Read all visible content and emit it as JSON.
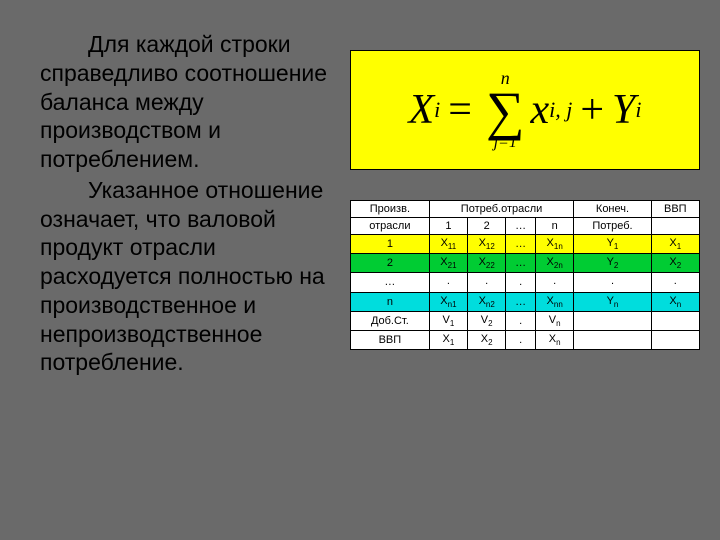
{
  "text": {
    "para1": "Для каждой строки справедливо соотношение баланса между производством и потреблением.",
    "para2": "Указанное отношение означает, что валовой продукт отрасли расходуется полностью на производственное и непроизводственное потребление."
  },
  "formula": {
    "lhs_var": "X",
    "lhs_sub": "i",
    "eq": "=",
    "sum_top": "n",
    "sum_sym": "∑",
    "sum_bot": "j=1",
    "term1_var": "x",
    "term1_sub": "i, j",
    "plus": "+",
    "term2_var": "Y",
    "term2_sub": "i",
    "bg": "#ffff00"
  },
  "table": {
    "colors": {
      "yellow": "#ffff00",
      "green": "#00cc33",
      "cyan": "#00dddd",
      "white": "#ffffff"
    },
    "header": {
      "c1a": "Произв.",
      "c1b": "отрасли",
      "c2": "Потреб.отрасли",
      "c2_1": "1",
      "c2_2": "2",
      "c2_d": "…",
      "c2_n": "n",
      "c3a": "Конеч.",
      "c3b": "Потреб.",
      "c4": "ВВП"
    },
    "rows": [
      {
        "cls": "row-yellow",
        "c1": "1",
        "a": "X",
        "a1": "11",
        "b": "X",
        "b1": "12",
        "d": "…",
        "n": "X",
        "n1": "1n",
        "y": "Y",
        "y1": "1",
        "x": "X",
        "x1": "1"
      },
      {
        "cls": "row-green",
        "c1": "2",
        "a": "X",
        "a1": "21",
        "b": "X",
        "b1": "22",
        "d": "…",
        "n": "X",
        "n1": "2n",
        "y": "Y",
        "y1": "2",
        "x": "X",
        "x1": "2"
      },
      {
        "cls": "row-white",
        "c1": "…",
        "a": ".",
        "a1": "",
        "b": ".",
        "b1": "",
        "d": ".",
        "n": ".",
        "n1": "",
        "y": ".",
        "y1": "",
        "x": ".",
        "x1": ""
      },
      {
        "cls": "row-cyan",
        "c1": "n",
        "a": "X",
        "a1": "n1",
        "b": "X",
        "b1": "n2",
        "d": "…",
        "n": "X",
        "n1": "nn",
        "y": "Y",
        "y1": "n",
        "x": "X",
        "x1": "n"
      }
    ],
    "footer1": {
      "c1": "Доб.Ст.",
      "a": "V",
      "a1": "1",
      "b": "V",
      "b1": "2",
      "d": ".",
      "n": "V",
      "n1": "n",
      "y": "",
      "x": ""
    },
    "footer2": {
      "c1": "ВВП",
      "a": "X",
      "a1": "1",
      "b": "X",
      "b1": "2",
      "d": ".",
      "n": "X",
      "n1": "n",
      "y": "",
      "x": ""
    }
  }
}
